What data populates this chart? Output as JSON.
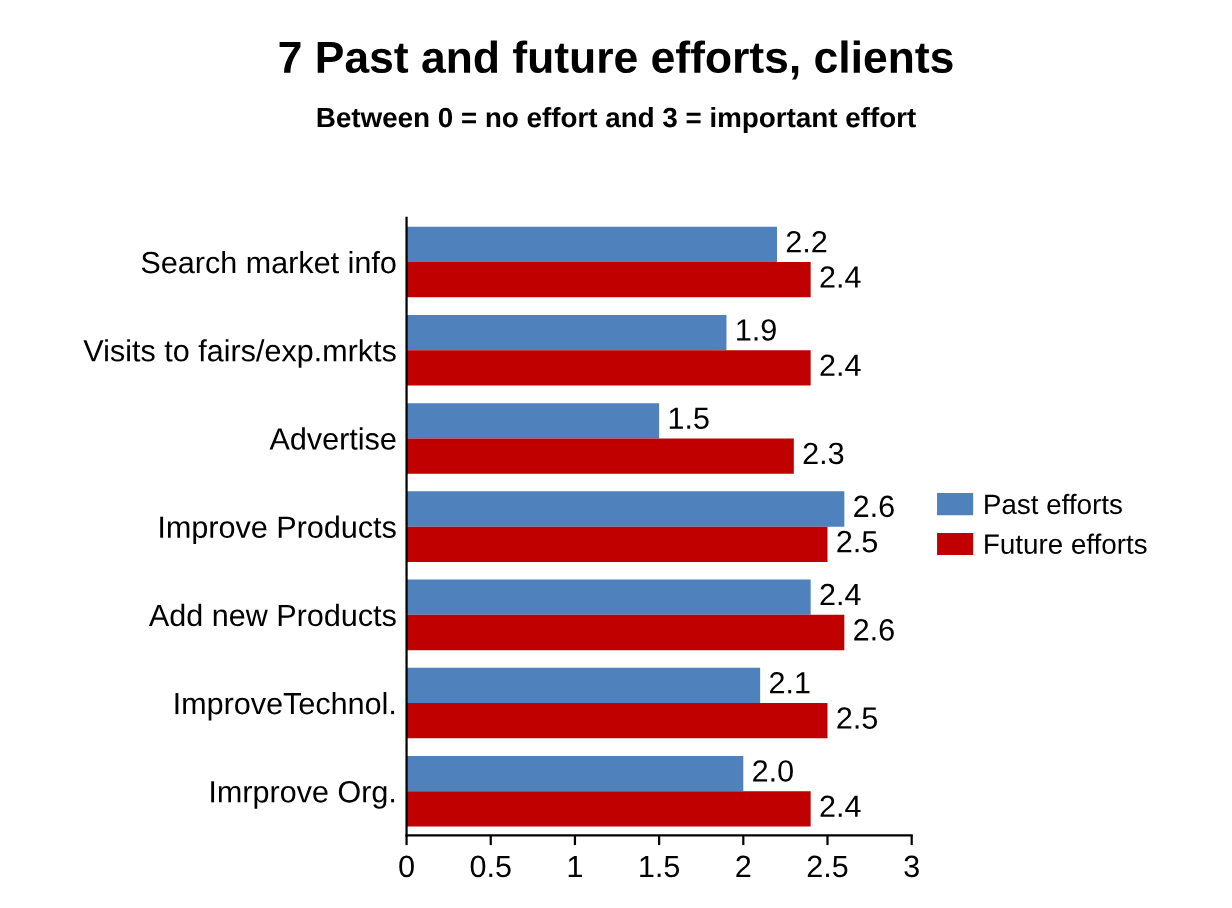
{
  "chart_data": {
    "type": "bar",
    "orientation": "horizontal",
    "title": "7 Past and future efforts, clients",
    "subtitle": "Between 0 = no effort and 3 = important effort",
    "categories": [
      "Search market info",
      "Visits to fairs/exp.mrkts",
      "Advertise",
      "Improve Products",
      "Add new Products",
      "ImproveTechnol.",
      "Imrprove Org."
    ],
    "series": [
      {
        "name": "Past efforts",
        "color": "#4f81bd",
        "values": [
          2.2,
          1.9,
          1.5,
          2.6,
          2.4,
          2.1,
          2.0
        ],
        "value_labels": [
          "2.2",
          "1.9",
          "1.5",
          "2.6",
          "2.4",
          "2.1",
          "2.0"
        ]
      },
      {
        "name": "Future efforts",
        "color": "#c00000",
        "values": [
          2.4,
          2.4,
          2.3,
          2.5,
          2.6,
          2.5,
          2.4
        ],
        "value_labels": [
          "2.4",
          "2.4",
          "2.3",
          "2.5",
          "2.6",
          "2.5",
          "2.4"
        ]
      }
    ],
    "xlim": [
      0,
      3
    ],
    "xticks": [
      0,
      {
        "value": 0.5,
        "label": "0.5"
      },
      1,
      {
        "value": 1.5,
        "label": "1.5"
      },
      2,
      {
        "value": 2.5,
        "label": "2.5"
      },
      3
    ],
    "legend": "right",
    "grid": false
  }
}
